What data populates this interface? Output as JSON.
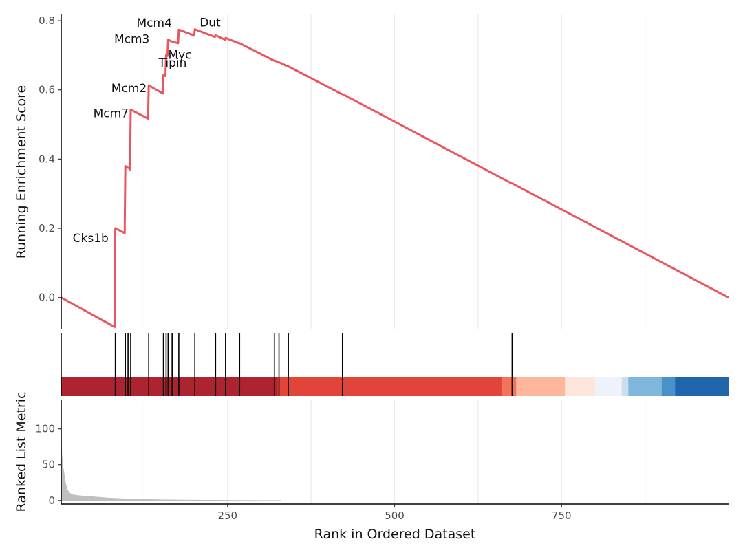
{
  "chart_data": {
    "type": "line",
    "x_range": [
      1,
      1000
    ],
    "x_ticks": [
      250,
      500,
      750
    ],
    "xlabel": "Rank in Ordered Dataset",
    "grid": "vertical major and minor gridlines, no horizontal gridlines",
    "running_score": {
      "ylabel": "Running Enrichment Score",
      "ylim": [
        -0.09,
        0.82
      ],
      "y_ticks": [
        0.0,
        0.2,
        0.4,
        0.6,
        0.8
      ],
      "y_tick_labels": [
        "0.0",
        "0.2",
        "0.4",
        "0.6",
        "0.8"
      ],
      "line_color": "#e8575e",
      "x": [
        1,
        81,
        82,
        96,
        97,
        101,
        102,
        104,
        105,
        131,
        132,
        153,
        154,
        157,
        158,
        160,
        161,
        166,
        167,
        176,
        177,
        200,
        201,
        231,
        232,
        246,
        247,
        267,
        268,
        319,
        320,
        326,
        327,
        340,
        341,
        421,
        422,
        675,
        676,
        1000
      ],
      "y": [
        0.0,
        -0.085,
        0.2,
        0.186,
        0.38,
        0.375,
        0.375,
        0.37,
        0.543,
        0.517,
        0.613,
        0.59,
        0.643,
        0.64,
        0.7,
        0.698,
        0.745,
        0.74,
        0.74,
        0.735,
        0.774,
        0.757,
        0.775,
        0.753,
        0.758,
        0.745,
        0.75,
        0.735,
        0.735,
        0.685,
        0.685,
        0.68,
        0.68,
        0.668,
        0.668,
        0.588,
        0.588,
        0.33,
        0.33,
        0.0
      ]
    },
    "gene_hits": {
      "x": [
        82,
        97,
        101,
        105,
        132,
        154,
        158,
        161,
        167,
        177,
        201,
        232,
        247,
        268,
        320,
        327,
        341,
        422,
        676
      ]
    },
    "gene_labels": [
      {
        "label": "Cks1b",
        "x": 82,
        "y": 0.2
      },
      {
        "label": "Mcm7",
        "x": 105,
        "y": 0.543
      },
      {
        "label": "Mcm2",
        "x": 132,
        "y": 0.613
      },
      {
        "label": "Tipin",
        "x": 154,
        "y": 0.643
      },
      {
        "label": "Myc",
        "x": 158,
        "y": 0.7
      },
      {
        "label": "Mcm3",
        "x": 161,
        "y": 0.745
      },
      {
        "label": "Mcm4",
        "x": 177,
        "y": 0.774
      },
      {
        "label": "Dut",
        "x": 201,
        "y": 0.775
      }
    ],
    "heatmap_band": [
      {
        "x_end": 325,
        "color": "#ad2430"
      },
      {
        "x_end": 660,
        "color": "#e2443a"
      },
      {
        "x_end": 682,
        "color": "#f4735a"
      },
      {
        "x_end": 755,
        "color": "#fdb69b"
      },
      {
        "x_end": 800,
        "color": "#fde5d9"
      },
      {
        "x_end": 840,
        "color": "#eef3fb"
      },
      {
        "x_end": 850,
        "color": "#c9dff0"
      },
      {
        "x_end": 900,
        "color": "#7eb7db"
      },
      {
        "x_end": 920,
        "color": "#4a91c9"
      },
      {
        "x_end": 1000,
        "color": "#2166ac"
      }
    ],
    "ranked_metric": {
      "ylabel": "Ranked List Metric",
      "ylim": [
        -5,
        140
      ],
      "y_ticks": [
        0,
        50,
        100
      ],
      "y_tick_labels": [
        "0",
        "50",
        "100"
      ],
      "fill_color": "#bfbfbf",
      "x": [
        1,
        2,
        4,
        6,
        8,
        10,
        14,
        18,
        25,
        35,
        50,
        70,
        100,
        150,
        200,
        250,
        330
      ],
      "y": [
        95,
        62,
        45,
        33,
        22,
        15,
        10,
        8,
        7,
        6,
        5,
        3.5,
        2,
        1,
        0.5,
        0.2,
        0
      ]
    }
  }
}
